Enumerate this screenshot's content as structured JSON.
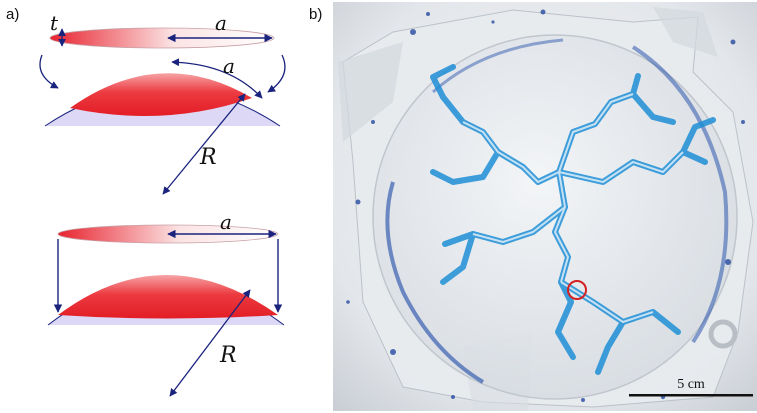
{
  "panels": {
    "a_label": "a)",
    "b_label": "b)"
  },
  "diagram_labels": {
    "thickness": "t",
    "radius_top_disk": "a",
    "radius_on_cap": "a",
    "sphere_radius_top": "R",
    "radius_bottom_disk": "a",
    "sphere_radius_bottom": "R"
  },
  "photo": {
    "scale_bar_label": "5 cm"
  },
  "colors": {
    "disk_red": "#e8232f",
    "arrow_navy": "#1a237e",
    "sphere_lavender": "#dcd8f5",
    "stain_blue": "#1f8fd6",
    "marker_red": "#d42020"
  }
}
